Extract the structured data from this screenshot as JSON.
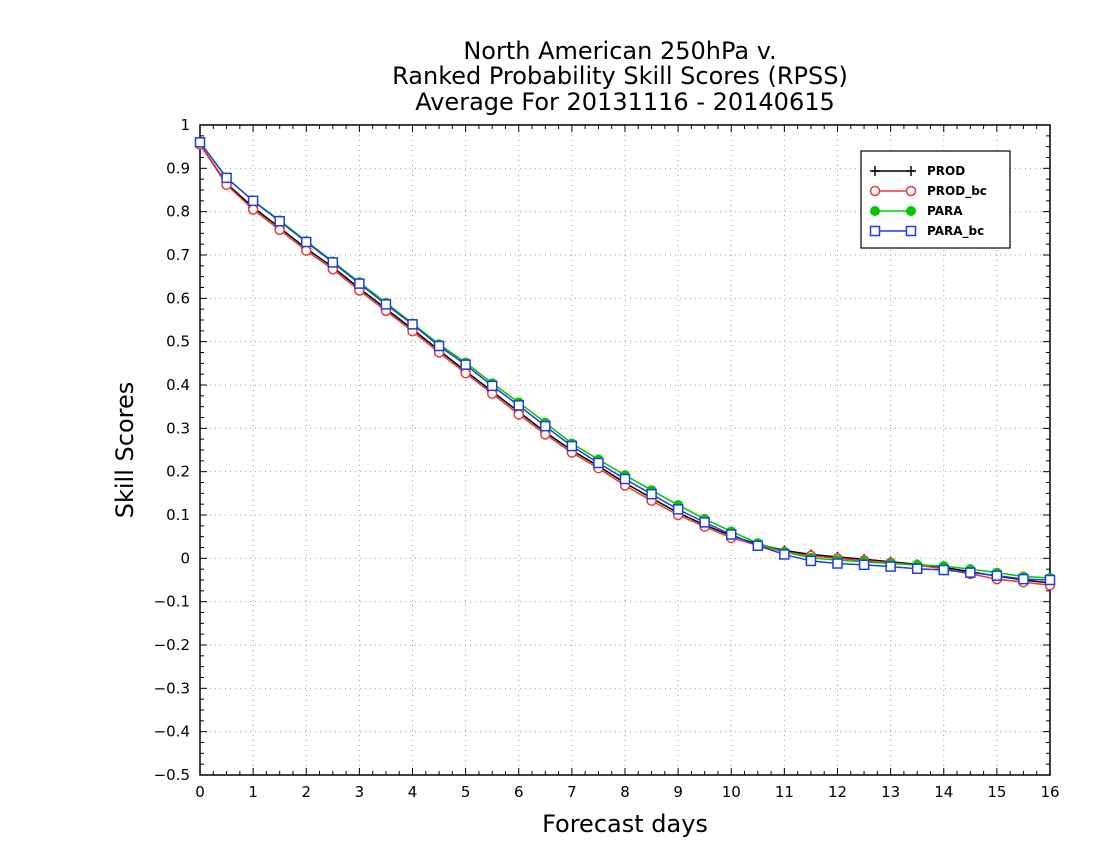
{
  "chart_data": {
    "type": "line",
    "title": [
      "North American 250hPa v.",
      "Ranked Probability Skill Scores (RPSS)",
      "Average For 20131116 - 20140615"
    ],
    "xlabel": "Forecast days",
    "ylabel": "Skill Scores",
    "xlim": [
      0,
      16
    ],
    "ylim": [
      -0.5,
      1
    ],
    "xticks": [
      0,
      1,
      2,
      3,
      4,
      5,
      6,
      7,
      8,
      9,
      10,
      11,
      12,
      13,
      14,
      15,
      16
    ],
    "xtick_labels": [
      "0",
      "1",
      "2",
      "3",
      "4",
      "5",
      "6",
      "7",
      "8",
      "9",
      "10",
      "11",
      "12",
      "13",
      "14",
      "15",
      "16"
    ],
    "yticks": [
      1,
      0.9,
      0.8,
      0.7,
      0.6,
      0.5,
      0.4,
      0.3,
      0.2,
      0.1,
      0,
      -0.1,
      -0.2,
      -0.3,
      -0.4,
      -0.5
    ],
    "ytick_labels": [
      "1",
      "0.9",
      "0.8",
      "0.7",
      "0.6",
      "0.5",
      "0.4",
      "0.3",
      "0.2",
      "0.1",
      "0",
      "−0.1",
      "−0.2",
      "−0.3",
      "−0.4",
      "−0.5"
    ],
    "grid": true,
    "legend_position": "top-right",
    "x": [
      0,
      0.5,
      1,
      1.5,
      2,
      2.5,
      3,
      3.5,
      4,
      4.5,
      5,
      5.5,
      6,
      6.5,
      7,
      7.5,
      8,
      8.5,
      9,
      9.5,
      10,
      10.5,
      11,
      11.5,
      12,
      12.5,
      13,
      13.5,
      14,
      14.5,
      15,
      15.5,
      16
    ],
    "series": [
      {
        "name": "PROD",
        "color": "#000000",
        "marker": "plus",
        "values": [
          0.955,
          0.865,
          0.81,
          0.763,
          0.715,
          0.672,
          0.623,
          0.576,
          0.529,
          0.48,
          0.432,
          0.385,
          0.338,
          0.291,
          0.249,
          0.213,
          0.174,
          0.139,
          0.105,
          0.077,
          0.052,
          0.033,
          0.018,
          0.009,
          0.003,
          -0.002,
          -0.008,
          -0.014,
          -0.021,
          -0.031,
          -0.041,
          -0.05,
          -0.057
        ]
      },
      {
        "name": "PROD_bc",
        "color": "#e8383c",
        "marker": "circle",
        "values": [
          0.955,
          0.862,
          0.805,
          0.758,
          0.71,
          0.667,
          0.618,
          0.571,
          0.524,
          0.475,
          0.427,
          0.38,
          0.332,
          0.286,
          0.244,
          0.208,
          0.168,
          0.133,
          0.1,
          0.073,
          0.047,
          0.03,
          0.015,
          0.006,
          0.0,
          -0.005,
          -0.01,
          -0.016,
          -0.024,
          -0.036,
          -0.048,
          -0.055,
          -0.062
        ]
      },
      {
        "name": "PARA",
        "color": "#00c800",
        "marker": "filled-circle",
        "values": [
          0.96,
          0.878,
          0.825,
          0.78,
          0.732,
          0.685,
          0.637,
          0.59,
          0.542,
          0.494,
          0.452,
          0.404,
          0.36,
          0.313,
          0.265,
          0.228,
          0.192,
          0.157,
          0.123,
          0.091,
          0.062,
          0.035,
          0.015,
          0.001,
          -0.004,
          -0.008,
          -0.012,
          -0.015,
          -0.018,
          -0.025,
          -0.033,
          -0.042,
          -0.045
        ]
      },
      {
        "name": "PARA_bc",
        "color": "#1f3fdc",
        "marker": "square",
        "values": [
          0.96,
          0.878,
          0.825,
          0.778,
          0.73,
          0.683,
          0.634,
          0.586,
          0.54,
          0.49,
          0.447,
          0.398,
          0.353,
          0.305,
          0.259,
          0.22,
          0.183,
          0.148,
          0.113,
          0.083,
          0.055,
          0.029,
          0.009,
          -0.006,
          -0.012,
          -0.015,
          -0.019,
          -0.024,
          -0.027,
          -0.033,
          -0.04,
          -0.048,
          -0.05
        ]
      }
    ]
  }
}
